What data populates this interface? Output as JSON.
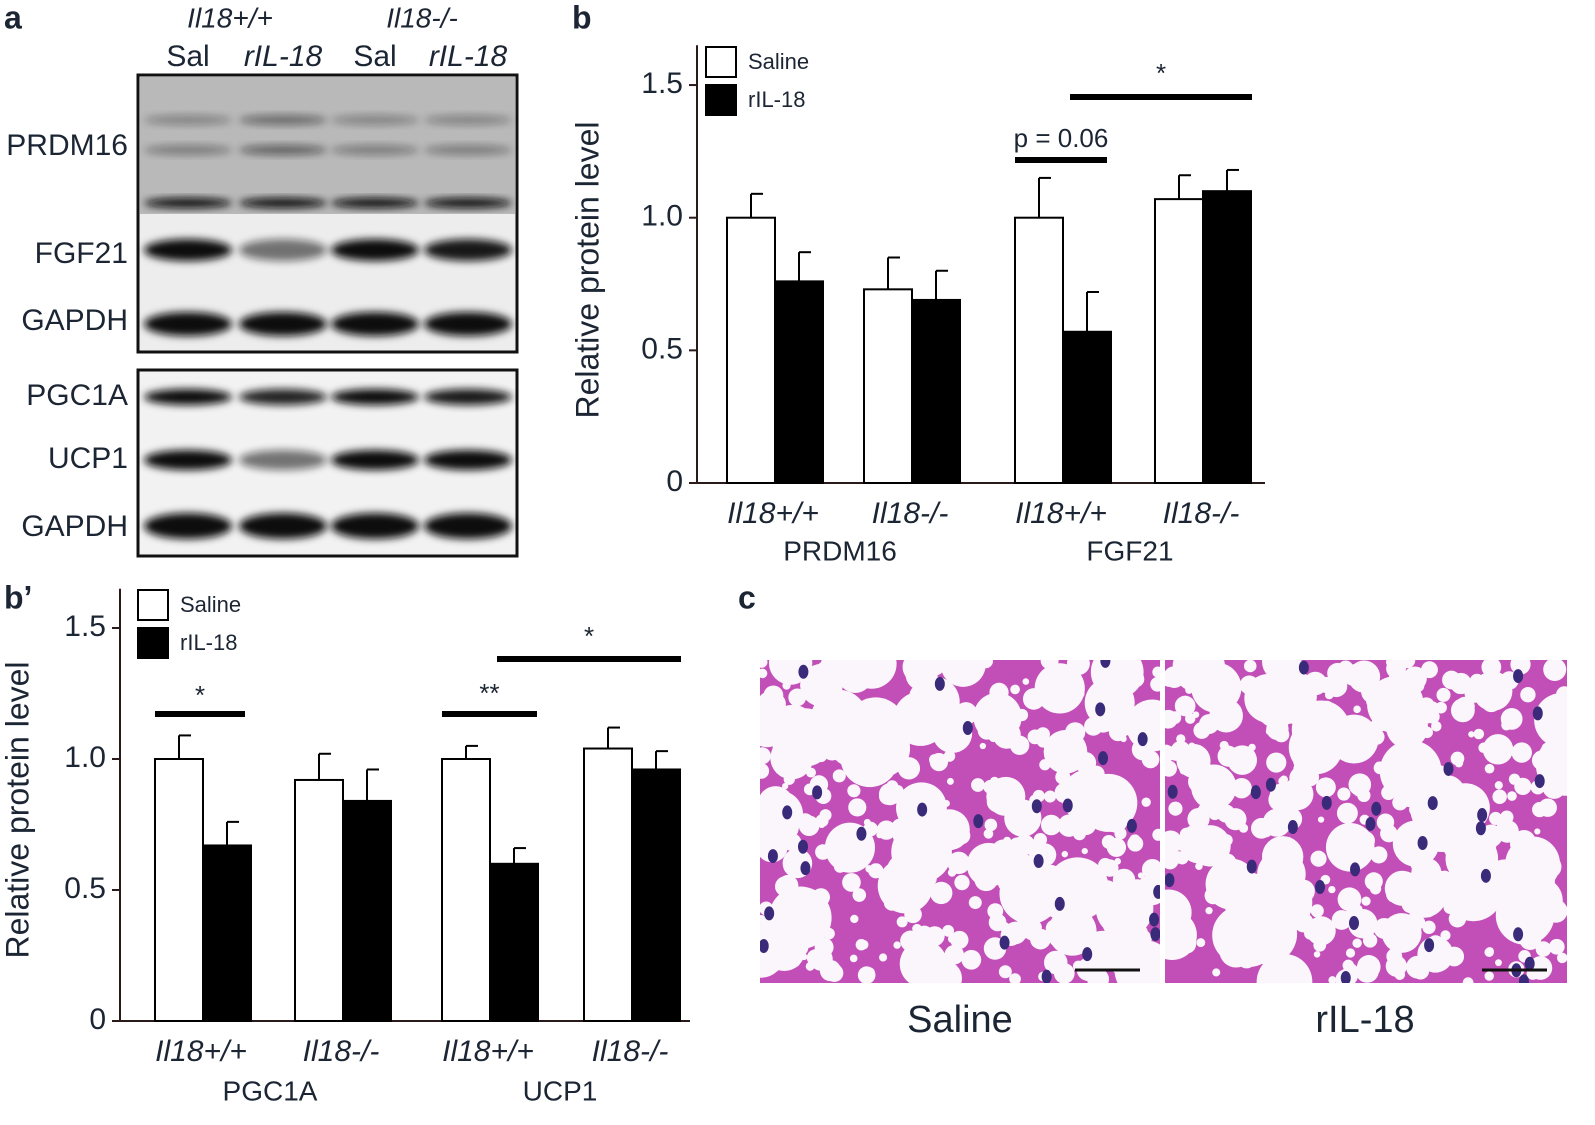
{
  "chart_data": [
    {
      "type": "bar",
      "y_label": "Relative protein level",
      "categories": [
        "Il18+/+",
        "Il18-/-",
        "Il18+/+",
        "Il18-/-"
      ],
      "groups": [
        "PRDM16",
        "FGF21"
      ],
      "series": [
        {
          "name": "Saline",
          "color": "#ffffff",
          "values": [
            1.0,
            0.73,
            1.0,
            1.07
          ],
          "errors": [
            0.09,
            0.12,
            0.15,
            0.09
          ]
        },
        {
          "name": "rIL-18",
          "color": "#000000",
          "values": [
            0.76,
            0.69,
            0.57,
            1.1
          ],
          "errors": [
            0.11,
            0.11,
            0.15,
            0.08
          ]
        }
      ],
      "ylim": [
        0,
        1.65
      ],
      "yticks": [
        0,
        0.5,
        {
          "value": 1,
          "label": "1.0"
        },
        1.5
      ],
      "legend": "upper left",
      "annotations": [
        "p = 0.06",
        "*"
      ]
    },
    {
      "type": "bar",
      "y_label": "Relative protein level",
      "categories": [
        "Il18+/+",
        "Il18-/-",
        "Il18+/+",
        "Il18-/-"
      ],
      "groups": [
        "PGC1A",
        "UCP1"
      ],
      "series": [
        {
          "name": "Saline",
          "color": "#ffffff",
          "values": [
            1.0,
            0.92,
            1.0,
            1.04
          ],
          "errors": [
            0.09,
            0.1,
            0.05,
            0.08
          ]
        },
        {
          "name": "rIL-18",
          "color": "#000000",
          "values": [
            0.67,
            0.84,
            0.6,
            0.96
          ],
          "errors": [
            0.09,
            0.12,
            0.06,
            0.07
          ]
        }
      ],
      "ylim": [
        0,
        1.65
      ],
      "yticks": [
        0,
        0.5,
        {
          "value": 1,
          "label": "1.0"
        },
        1.5
      ],
      "legend": "upper left",
      "annotations": [
        "*",
        "**",
        "*"
      ]
    }
  ],
  "panel_labels": [
    "a",
    "b",
    "b’",
    "c"
  ],
  "blot": {
    "genotypes": [
      "Il18+/+",
      "Il18-/-"
    ],
    "treatments": [
      "Sal",
      "rIL-18",
      "Sal",
      "rIL-18"
    ],
    "proteins": [
      "PRDM16",
      "FGF21",
      "GAPDH",
      "PGC1A",
      "UCP1",
      "GAPDH"
    ]
  },
  "histology": {
    "captions": [
      "Saline",
      "rIL-18"
    ]
  }
}
